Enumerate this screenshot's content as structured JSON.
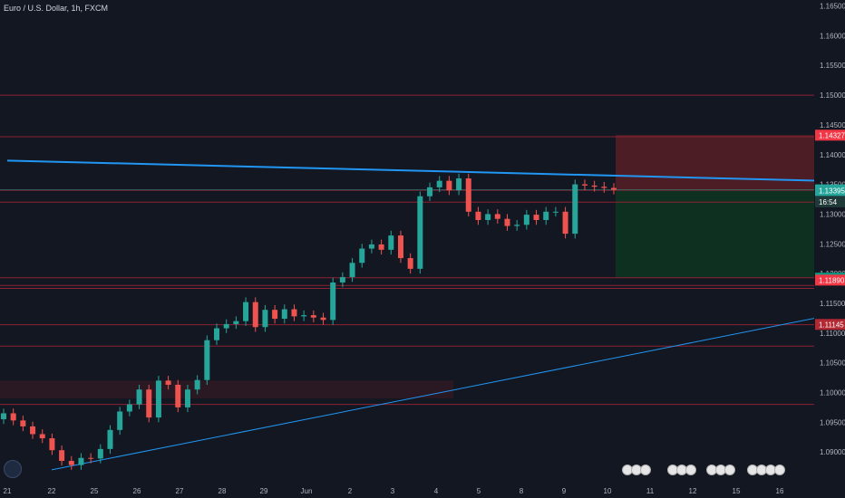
{
  "chart_title": "Euro / U.S. Dollar, 1h, FXCM",
  "colors": {
    "background": "#131722",
    "up": "#26a69a",
    "down": "#ef5350",
    "trendline": "#2196f3",
    "level": "#8b2233",
    "risk_zone": "#5b1f26",
    "reward_zone": "#0e3320",
    "support_zone": "#351a22",
    "axis_text": "#b2b5be"
  },
  "chart_data": {
    "type": "candlestick",
    "symbol": "EUR/USD",
    "timeframe": "1h",
    "ylim": [
      1.085,
      1.166
    ],
    "y_ticks": [
      "1.16500",
      "1.16000",
      "1.15500",
      "1.15000",
      "1.14500",
      "1.14000",
      "1.13500",
      "1.13000",
      "1.12500",
      "1.12000",
      "1.11500",
      "1.11000",
      "1.10500",
      "1.10000",
      "1.09500",
      "1.09000"
    ],
    "x_ticks": [
      "21",
      "22",
      "25",
      "26",
      "27",
      "28",
      "29",
      "Jun",
      "2",
      "3",
      "4",
      "5",
      "8",
      "9",
      "10",
      "11",
      "12",
      "15",
      "16"
    ],
    "price_labels": [
      {
        "text": "1.14327",
        "value": 1.14327,
        "color": "#f23645"
      },
      {
        "text": "1.13408",
        "value": 1.13408,
        "color": "#26a69a"
      },
      {
        "text": "1.13395",
        "value": 1.13395,
        "color": "#26a69a"
      },
      {
        "text": "16:54",
        "value": 1.13205,
        "color": "#1f3a38"
      },
      {
        "text": "1.11923",
        "value": 1.11923,
        "color": "#089981"
      },
      {
        "text": "1.11890",
        "value": 1.1189,
        "color": "#f23645"
      },
      {
        "text": "1.11145",
        "value": 1.11145,
        "color": "#b22833"
      }
    ],
    "horizontal_levels": [
      1.15,
      1.143,
      1.134,
      1.132,
      1.1193,
      1.118,
      1.1175,
      1.1114,
      1.1078,
      1.098
    ],
    "trendlines": [
      {
        "from": [
          "21",
          1.139
        ],
        "to": [
          "16+",
          1.1355
        ],
        "style": "thick"
      },
      {
        "from": [
          "22",
          1.087
        ],
        "to": [
          "16+",
          1.1135
        ],
        "style": "thin"
      }
    ],
    "position": {
      "entry": 1.1341,
      "stop": 1.1433,
      "target": 1.1193,
      "type": "short"
    },
    "close": [
      1.0965,
      1.0953,
      1.0943,
      1.093,
      1.0923,
      1.0903,
      1.0885,
      1.0878,
      1.089,
      1.0889,
      1.0905,
      1.0937,
      1.0968,
      1.098,
      1.1005,
      1.0958,
      1.102,
      1.1013,
      1.0975,
      1.1005,
      1.1021,
      1.1088,
      1.1108,
      1.1115,
      1.112,
      1.1152,
      1.111,
      1.1139,
      1.1124,
      1.114,
      1.1128,
      1.113,
      1.1126,
      1.1122,
      1.1185,
      1.1194,
      1.1218,
      1.1242,
      1.1249,
      1.124,
      1.1264,
      1.1226,
      1.1208,
      1.133,
      1.1345,
      1.1356,
      1.134,
      1.136,
      1.1304,
      1.129,
      1.13,
      1.1292,
      1.128,
      1.1282,
      1.1299,
      1.129,
      1.1304,
      1.1304,
      1.1267,
      1.135,
      1.1348,
      1.1346,
      1.1344,
      1.1341
    ]
  }
}
